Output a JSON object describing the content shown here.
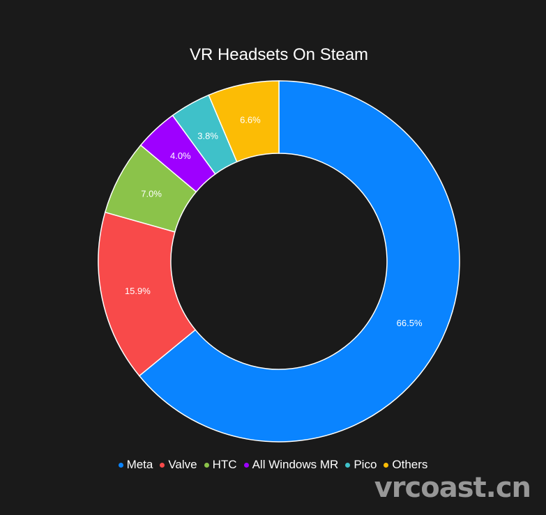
{
  "chart_data": {
    "type": "pie",
    "title": "VR Headsets On Steam",
    "categories": [
      "Meta",
      "Valve",
      "HTC",
      "All Windows MR",
      "Pico",
      "Others"
    ],
    "values": [
      66.5,
      15.9,
      7.0,
      4.0,
      3.8,
      6.6
    ],
    "labels": [
      "66.5%",
      "15.9%",
      "7.0%",
      "4.0%",
      "3.8%",
      "6.6%"
    ],
    "colors": [
      "#0a84ff",
      "#f84a4a",
      "#8bc34a",
      "#9e00ff",
      "#3fc1c9",
      "#fcbc05"
    ],
    "donut": true,
    "legend_position": "bottom-center"
  },
  "watermark": "vrcoast.cn"
}
